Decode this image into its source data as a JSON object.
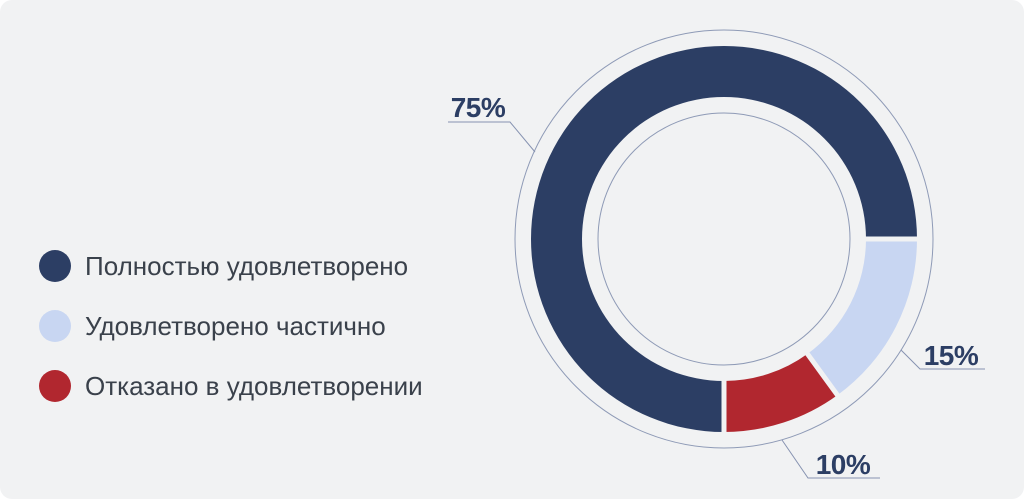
{
  "card": {
    "background": "#f1f2f3"
  },
  "colors": {
    "outline": "#8e9ab6",
    "connector": "#8793b1",
    "label_text": "#2c3e64",
    "legend_text": "#3a414b",
    "separator": "#f1f2f3"
  },
  "chart_data": {
    "type": "pie",
    "subtype": "donut",
    "title": "",
    "legend_position": "left",
    "direction": "clockwise",
    "start_angle_deg": 90,
    "value_suffix": "%",
    "segments": [
      {
        "label": "Полностью удовлетворено",
        "value": 75,
        "color": "#2c3e64"
      },
      {
        "label": "Удовлетворено частично",
        "value": 15,
        "color": "#c8d6f2"
      },
      {
        "label": "Отказано в удовлетворении",
        "value": 10,
        "color": "#b1272f"
      }
    ],
    "labels": [
      "75%",
      "15%",
      "10%"
    ]
  }
}
